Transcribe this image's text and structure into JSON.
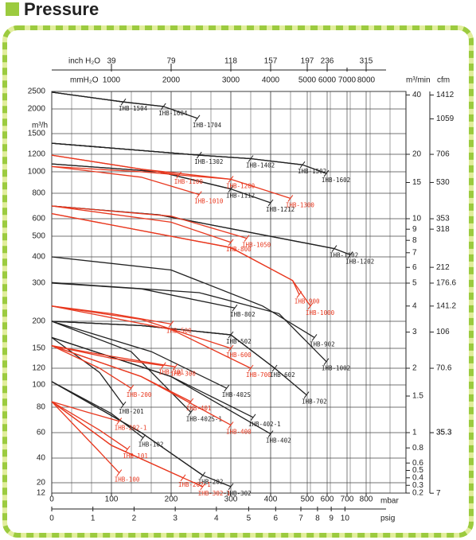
{
  "chart_data": {
    "type": "line",
    "title": "Pressure",
    "xlabel": "mbar",
    "x_psig_label": "psig",
    "x_inch_label": "inch H₂O",
    "x_mm_label": "mmH₂O",
    "ylabel": "m³/h",
    "y2label": "m³/min",
    "y3label": "cfm",
    "xlim": [
      0,
      800
    ],
    "xticks": [
      0,
      100,
      200,
      300,
      400,
      500,
      600,
      700,
      800
    ],
    "x_mm_labels": [
      null,
      1000,
      2000,
      3000,
      4000,
      5000,
      6000,
      7000,
      8000
    ],
    "x_inch_labels": [
      null,
      39,
      79,
      118,
      157,
      197,
      236,
      null,
      315
    ],
    "psig_ticks": [
      0,
      1,
      2,
      3,
      4,
      5,
      6,
      7,
      8,
      9,
      10
    ],
    "ylim": [
      12,
      2500
    ],
    "yticks": [
      12,
      20,
      40,
      60,
      80,
      100,
      120,
      150,
      200,
      300,
      400,
      500,
      600,
      800,
      1000,
      1200,
      1500,
      2000,
      2500
    ],
    "y2ticks": [
      0.2,
      0.3,
      0.4,
      0.5,
      0.6,
      0.8,
      1,
      1.5,
      2,
      3,
      4,
      5,
      6,
      7,
      8,
      9,
      10,
      15,
      20,
      40
    ],
    "y3ticks": [
      7,
      35.3,
      35.3,
      70.6,
      106,
      141.2,
      176.6,
      212,
      318,
      353,
      530,
      706,
      1059,
      1412
    ],
    "grid": true,
    "series": [
      {
        "name": "IHB-1504",
        "color": "#222222",
        "x": [
          0,
          120
        ],
        "values": [
          2480,
          2200
        ]
      },
      {
        "name": "IHB-1604",
        "color": "#222222",
        "x": [
          0,
          120,
          187
        ],
        "values": [
          2480,
          2200,
          2070
        ]
      },
      {
        "name": "IHB-1704",
        "color": "#222222",
        "x": [
          0,
          120,
          187,
          244
        ],
        "values": [
          2480,
          2200,
          2070,
          1810
        ]
      },
      {
        "name": "IHB-1302",
        "color": "#222222",
        "x": [
          0,
          247
        ],
        "values": [
          1360,
          1190
        ]
      },
      {
        "name": "IHB-1402",
        "color": "#222222",
        "x": [
          0,
          247,
          350
        ],
        "values": [
          1360,
          1190,
          1150
        ]
      },
      {
        "name": "IHB-1502",
        "color": "#222222",
        "x": [
          0,
          247,
          350,
          487
        ],
        "values": [
          1360,
          1190,
          1150,
          1080
        ]
      },
      {
        "name": "IHB-1602",
        "color": "#222222",
        "x": [
          0,
          247,
          350,
          487,
          596
        ],
        "values": [
          1360,
          1190,
          1150,
          1080,
          985
        ]
      },
      {
        "name": "IHB-1112",
        "color": "#222222",
        "x": [
          0,
          180,
          300
        ],
        "values": [
          1090,
          1000,
          840
        ]
      },
      {
        "name": "IHB-1212",
        "color": "#222222",
        "x": [
          0,
          180,
          300,
          400
        ],
        "values": [
          1090,
          1000,
          840,
          725
        ]
      },
      {
        "name": "IHB-1102",
        "color": "#222222",
        "x": [
          0,
          180,
          636
        ],
        "values": [
          700,
          630,
          440
        ]
      },
      {
        "name": "IHB-1202",
        "color": "#222222",
        "x": [
          0,
          180,
          636,
          717
        ],
        "values": [
          700,
          630,
          440,
          410
        ]
      },
      {
        "name": "IHB-802",
        "color": "#222222",
        "x": [
          0,
          150,
          310
        ],
        "values": [
          300,
          285,
          235
        ]
      },
      {
        "name": "IHB-902",
        "color": "#222222",
        "x": [
          0,
          200,
          380,
          536
        ],
        "values": [
          400,
          350,
          240,
          170
        ]
      },
      {
        "name": "IHB-1002",
        "color": "#222222",
        "x": [
          0,
          247,
          423,
          596
        ],
        "values": [
          302,
          275,
          220,
          130
        ]
      },
      {
        "name": "IHB-502",
        "color": "#222222",
        "x": [
          0,
          150,
          300
        ],
        "values": [
          200,
          192,
          175
        ]
      },
      {
        "name": "IHB-602",
        "color": "#222222",
        "x": [
          0,
          150,
          300,
          411
        ],
        "values": [
          200,
          192,
          175,
          120
        ]
      },
      {
        "name": "IHB-702",
        "color": "#222222",
        "x": [
          0,
          150,
          300,
          411,
          498
        ],
        "values": [
          200,
          192,
          175,
          120,
          91
        ]
      },
      {
        "name": "IHB-402S",
        "color": "#222222",
        "x": [
          0,
          167,
          293
        ],
        "values": [
          200,
          145,
          97
        ]
      },
      {
        "name": "IHB-402S-1",
        "color": "#222222",
        "x": [
          0,
          133,
          233
        ],
        "values": [
          200,
          145,
          76
        ]
      },
      {
        "name": "IHB-402-1",
        "color": "#222222",
        "x": [
          0,
          200,
          356
        ],
        "values": [
          170,
          110,
          72
        ]
      },
      {
        "name": "IHB-402",
        "color": "#222222",
        "x": [
          0,
          200,
          400
        ],
        "values": [
          170,
          110,
          59
        ]
      },
      {
        "name": "IHB-201",
        "color": "#222222",
        "x": [
          0,
          80,
          120
        ],
        "values": [
          170,
          115,
          82
        ]
      },
      {
        "name": "IHB-102",
        "color": "#222222",
        "x": [
          0,
          100,
          153
        ],
        "values": [
          104,
          75,
          56
        ]
      },
      {
        "name": "IHB-202",
        "color": "#222222",
        "x": [
          0,
          150,
          253
        ],
        "values": [
          104,
          60,
          26
        ]
      },
      {
        "name": "IHB-302",
        "color": "#222222",
        "x": [
          0,
          150,
          253,
          300
        ],
        "values": [
          104,
          60,
          26,
          17
        ]
      },
      {
        "name": "IHB-1100",
        "color": "#e8381f",
        "x": [
          0,
          213
        ],
        "values": [
          1190,
          970
        ]
      },
      {
        "name": "IHB-1200",
        "color": "#e8381f",
        "x": [
          0,
          150,
          300
        ],
        "values": [
          1190,
          1030,
          930
        ]
      },
      {
        "name": "IHB-1010",
        "color": "#e8381f",
        "x": [
          0,
          150,
          247
        ],
        "values": [
          1060,
          950,
          790
        ]
      },
      {
        "name": "IHB-1300",
        "color": "#e8381f",
        "x": [
          0,
          150,
          300,
          454
        ],
        "values": [
          1060,
          1000,
          930,
          760
        ]
      },
      {
        "name": "IHB-800",
        "color": "#e8381f",
        "x": [
          0,
          200,
          300
        ],
        "values": [
          700,
          580,
          470
        ]
      },
      {
        "name": "IHB-1050",
        "color": "#e8381f",
        "x": [
          0,
          200,
          340
        ],
        "values": [
          700,
          620,
          490
        ]
      },
      {
        "name": "IHB-900",
        "color": "#e8381f",
        "x": [
          0,
          300,
          460,
          478
        ],
        "values": [
          640,
          445,
          310,
          270
        ]
      },
      {
        "name": "IHB-1000",
        "color": "#e8381f",
        "x": [
          0,
          300,
          460,
          516
        ],
        "values": [
          640,
          445,
          310,
          240
        ]
      },
      {
        "name": "IHB-500",
        "color": "#e8381f",
        "x": [
          0,
          100,
          200
        ],
        "values": [
          240,
          220,
          195
        ]
      },
      {
        "name": "IHB-600",
        "color": "#e8381f",
        "x": [
          0,
          150,
          300
        ],
        "values": [
          240,
          205,
          150
        ]
      },
      {
        "name": "IHB-700",
        "color": "#e8381f",
        "x": [
          0,
          200,
          350
        ],
        "values": [
          240,
          185,
          120
        ]
      },
      {
        "name": "IHB-301",
        "color": "#e8381f",
        "x": [
          0,
          100,
          187
        ],
        "values": [
          155,
          135,
          124
        ]
      },
      {
        "name": "IHB-300",
        "color": "#e8381f",
        "x": [
          0,
          100,
          207
        ],
        "values": [
          155,
          138,
          122
        ]
      },
      {
        "name": "IHB-200",
        "color": "#e8381f",
        "x": [
          0,
          80,
          133
        ],
        "values": [
          155,
          120,
          97
        ]
      },
      {
        "name": "IHB-401",
        "color": "#e8381f",
        "x": [
          0,
          150,
          233
        ],
        "values": [
          155,
          110,
          85
        ]
      },
      {
        "name": "IHB-400",
        "color": "#e8381f",
        "x": [
          0,
          150,
          300
        ],
        "values": [
          155,
          110,
          66
        ]
      },
      {
        "name": "IHB-202-1",
        "color": "#e8381f",
        "x": [
          0,
          60,
          113
        ],
        "values": [
          85,
          76,
          69
        ]
      },
      {
        "name": "IHB-101",
        "color": "#e8381f",
        "x": [
          0,
          80,
          127
        ],
        "values": [
          85,
          62,
          47
        ]
      },
      {
        "name": "IHB-100",
        "color": "#e8381f",
        "x": [
          0,
          80,
          113
        ],
        "values": [
          85,
          45,
          28
        ]
      },
      {
        "name": "IHB-202-1",
        "color": "#e8381f",
        "x": [
          0,
          100,
          220
        ],
        "values": [
          85,
          50,
          24
        ]
      },
      {
        "name": "IHB-302-1",
        "color": "#e8381f",
        "x": [
          0,
          100,
          220,
          253
        ],
        "values": [
          85,
          50,
          24,
          17
        ]
      }
    ]
  }
}
